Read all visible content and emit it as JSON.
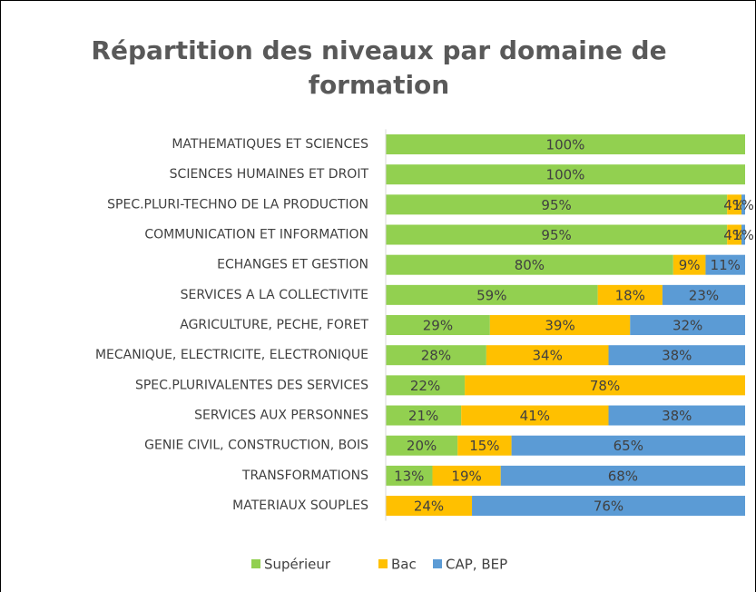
{
  "chart_data": {
    "type": "stacked_barh",
    "title": "Répartition des niveaux par domaine de formation",
    "categories": [
      "MATHEMATIQUES ET SCIENCES",
      "SCIENCES HUMAINES ET DROIT",
      "SPEC.PLURI-TECHNO DE LA PRODUCTION",
      "COMMUNICATION ET INFORMATION",
      "ECHANGES ET GESTION",
      "SERVICES A LA COLLECTIVITE",
      "AGRICULTURE, PECHE, FORET",
      "MECANIQUE, ELECTRICITE, ELECTRONIQUE",
      "SPEC.PLURIVALENTES DES SERVICES",
      "SERVICES AUX PERSONNES",
      "GENIE CIVIL, CONSTRUCTION, BOIS",
      "TRANSFORMATIONS",
      "MATERIAUX SOUPLES"
    ],
    "series": [
      {
        "name": "Supérieur",
        "color": "#92d050",
        "values": [
          100,
          100,
          95,
          95,
          80,
          59,
          29,
          28,
          22,
          21,
          20,
          13,
          0
        ],
        "value_labels": [
          "100%",
          "100%",
          "95%",
          "95%",
          "80%",
          "59%",
          "29%",
          "28%",
          "22%",
          "21%",
          "20%",
          "13%",
          null
        ]
      },
      {
        "name": "Bac",
        "color": "#ffc000",
        "values": [
          0,
          0,
          4,
          4,
          9,
          18,
          39,
          34,
          78,
          41,
          15,
          19,
          24
        ],
        "value_labels": [
          null,
          null,
          "4%",
          "4%",
          "9%",
          "18%",
          "39%",
          "34%",
          "78%",
          "41%",
          "15%",
          "19%",
          "24%"
        ]
      },
      {
        "name": "CAP, BEP",
        "color": "#5b9bd5",
        "values": [
          0,
          0,
          1,
          1,
          11,
          23,
          32,
          38,
          0,
          38,
          65,
          68,
          76
        ],
        "value_labels": [
          null,
          null,
          "1%",
          "1%",
          "11%",
          "23%",
          "32%",
          "38%",
          null,
          "38%",
          "65%",
          "68%",
          "76%"
        ]
      }
    ],
    "xlim": [
      0,
      100
    ],
    "legend": "bottom"
  }
}
